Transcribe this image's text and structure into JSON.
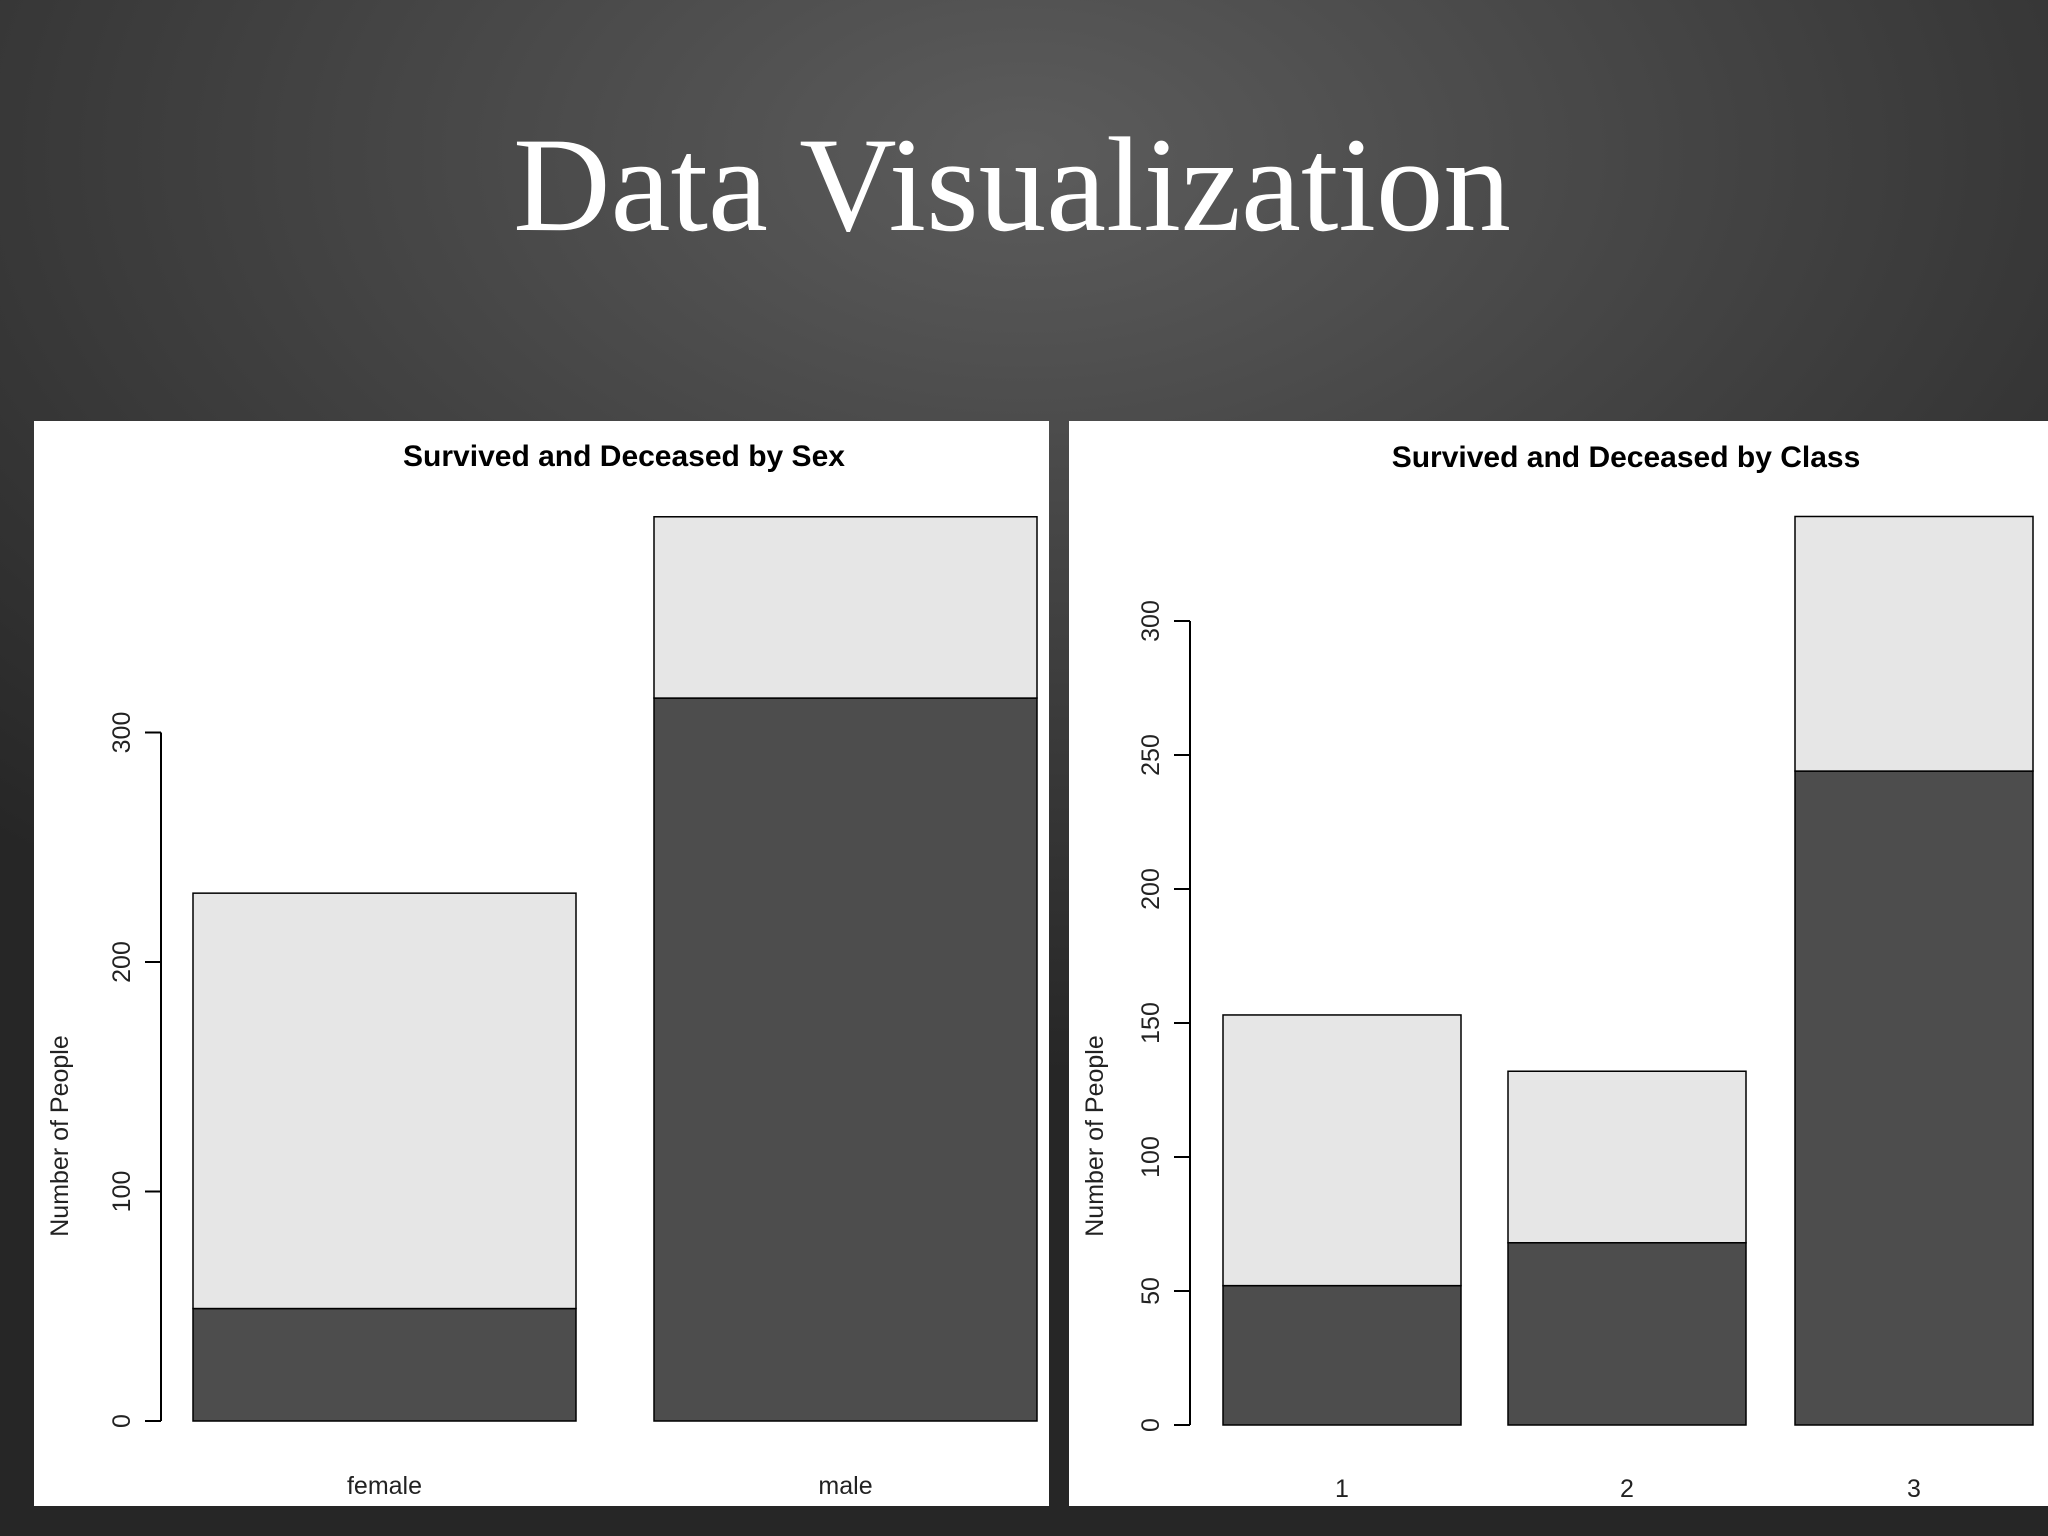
{
  "slide": {
    "title": "Data Visualization"
  },
  "colors": {
    "deceased": "#4d4d4d",
    "survived": "#e6e6e6",
    "outline": "#000000"
  },
  "chart_data": [
    {
      "type": "bar",
      "stacked": true,
      "title": "Survived and Deceased by Sex",
      "xlabel": "",
      "ylabel": "Number of People",
      "categories": [
        "female",
        "male"
      ],
      "series": [
        {
          "values": [
            49,
            315
          ]
        },
        {
          "values": [
            181,
            79
          ]
        }
      ],
      "yticks": [
        0,
        100,
        200,
        300
      ],
      "ylim": [
        0,
        400
      ],
      "grid": false,
      "legend": false
    },
    {
      "type": "bar",
      "stacked": true,
      "title": "Survived and Deceased by Class",
      "xlabel": "",
      "ylabel": "Number of People",
      "categories": [
        "1",
        "2",
        "3"
      ],
      "series": [
        {
          "values": [
            52,
            68,
            244
          ]
        },
        {
          "values": [
            101,
            64,
            95
          ]
        }
      ],
      "yticks": [
        0,
        50,
        100,
        150,
        200,
        250,
        300
      ],
      "ylim": [
        0,
        350
      ],
      "grid": false,
      "legend": false
    }
  ]
}
